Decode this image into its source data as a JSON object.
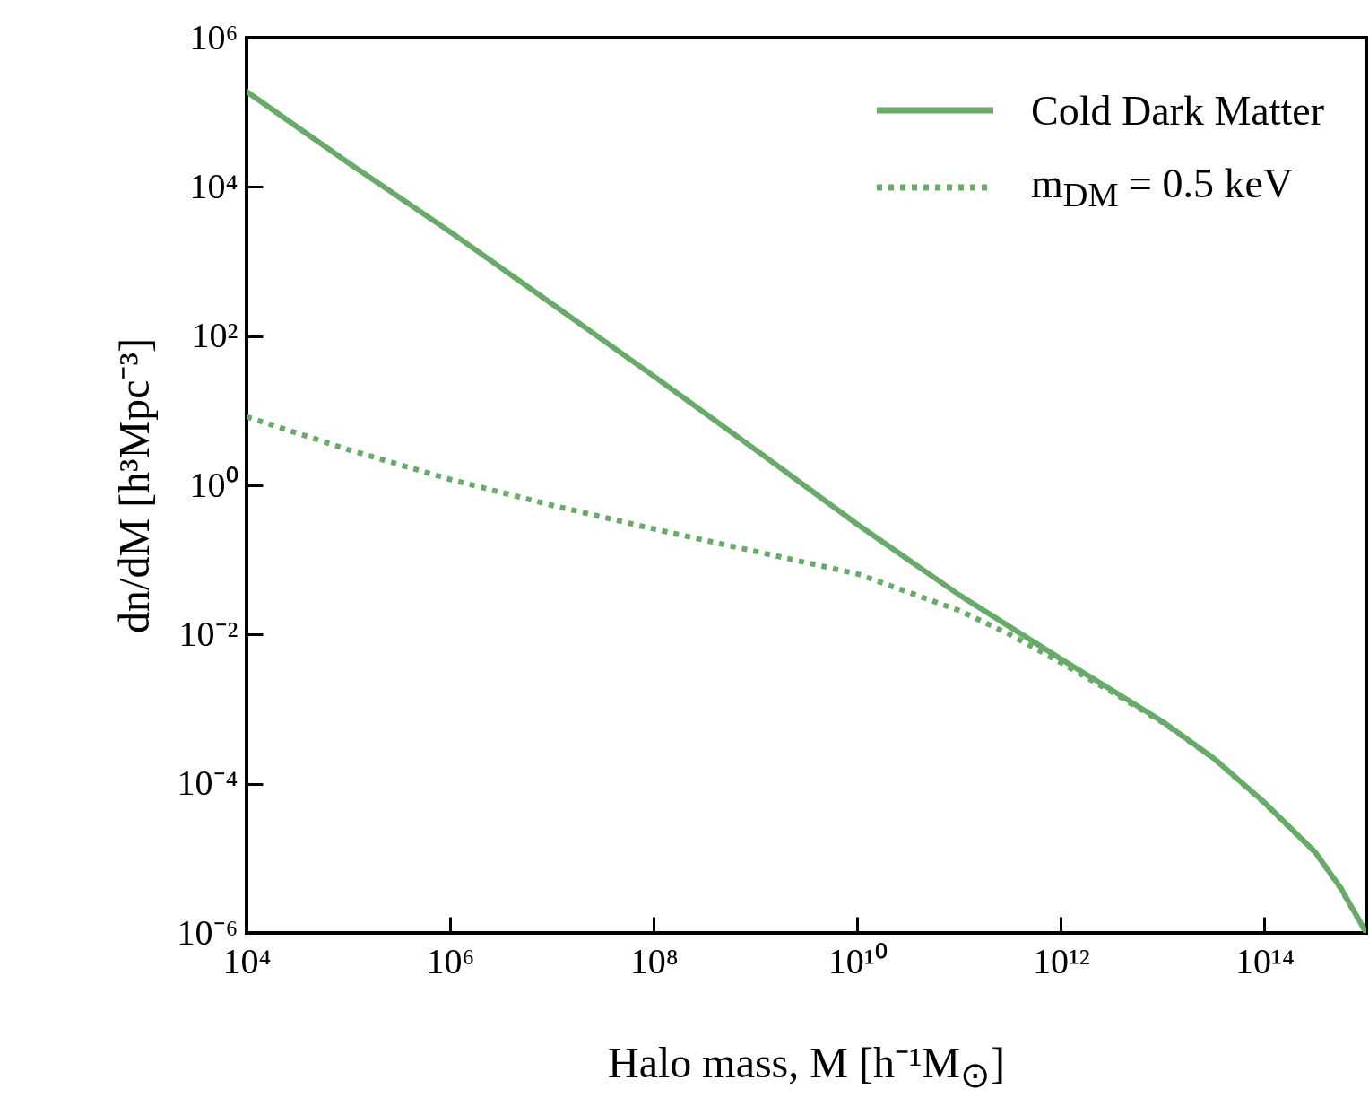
{
  "chart_data": {
    "type": "line",
    "xlabel": "Halo mass, M [h⁻¹M$_{⊙}$]",
    "ylabel": "dn/dM [h³Mpc⁻³]",
    "log": "xy",
    "grid": false,
    "legend": "top right",
    "xlim": [
      10000.0,
      1000000000000000.0
    ],
    "ylim": [
      1e-06,
      1000000.0
    ],
    "xticks": [
      {
        "value": 10000.0,
        "label": "10⁴"
      },
      {
        "value": 1000000.0,
        "label": "10⁶"
      },
      {
        "value": 100000000.0,
        "label": "10⁸"
      },
      {
        "value": 10000000000.0,
        "label": "10¹⁰"
      },
      {
        "value": 1000000000000.0,
        "label": "10¹²"
      },
      {
        "value": 100000000000000.0,
        "label": "10¹⁴"
      }
    ],
    "yticks": [
      {
        "value": 1e-06,
        "label": "10⁻⁶"
      },
      {
        "value": 0.0001,
        "label": "10⁻⁴"
      },
      {
        "value": 0.01,
        "label": "10⁻²"
      },
      {
        "value": 1,
        "label": "10⁰"
      },
      {
        "value": 100,
        "label": "10²"
      },
      {
        "value": 10000.0,
        "label": "10⁴"
      },
      {
        "value": 1000000.0,
        "label": "10⁶"
      }
    ],
    "series": [
      {
        "name": "Cold Dark Matter",
        "color": "#68ab68",
        "line_style": "solid",
        "x": [
          10000.0,
          100000.0,
          1000000.0,
          10000000.0,
          100000000.0,
          1000000000.0,
          10000000000.0,
          100000000000.0,
          1000000000000.0,
          3160000000000.0,
          10000000000000.0,
          31600000000000.0,
          100000000000000.0,
          316000000000000.0,
          562000000000000.0,
          1000000000000000.0
        ],
        "values": [
          190000,
          21000,
          2500,
          270,
          29,
          3.0,
          0.3,
          0.034,
          0.0047,
          0.0018,
          0.00068,
          0.00022,
          5.6e-05,
          1.2e-05,
          4e-06,
          1e-06
        ]
      },
      {
        "name": "m$_{DM}$ = 0.5 keV",
        "color": "#68ab68",
        "line_style": "dotted",
        "x": [
          10000.0,
          100000.0,
          1000000.0,
          10000000.0,
          100000000.0,
          1000000000.0,
          10000000000.0,
          100000000000.0,
          316000000000.0,
          1000000000000.0,
          3160000000000.0,
          10000000000000.0,
          31600000000000.0,
          100000000000000.0,
          316000000000000.0,
          562000000000000.0,
          1000000000000000.0
        ],
        "values": [
          8.3,
          3.0,
          1.2,
          0.54,
          0.26,
          0.13,
          0.065,
          0.021,
          0.01,
          0.0042,
          0.0017,
          0.00066,
          0.00022,
          5.5e-05,
          1.2e-05,
          3.9e-06,
          1e-06
        ]
      }
    ]
  }
}
